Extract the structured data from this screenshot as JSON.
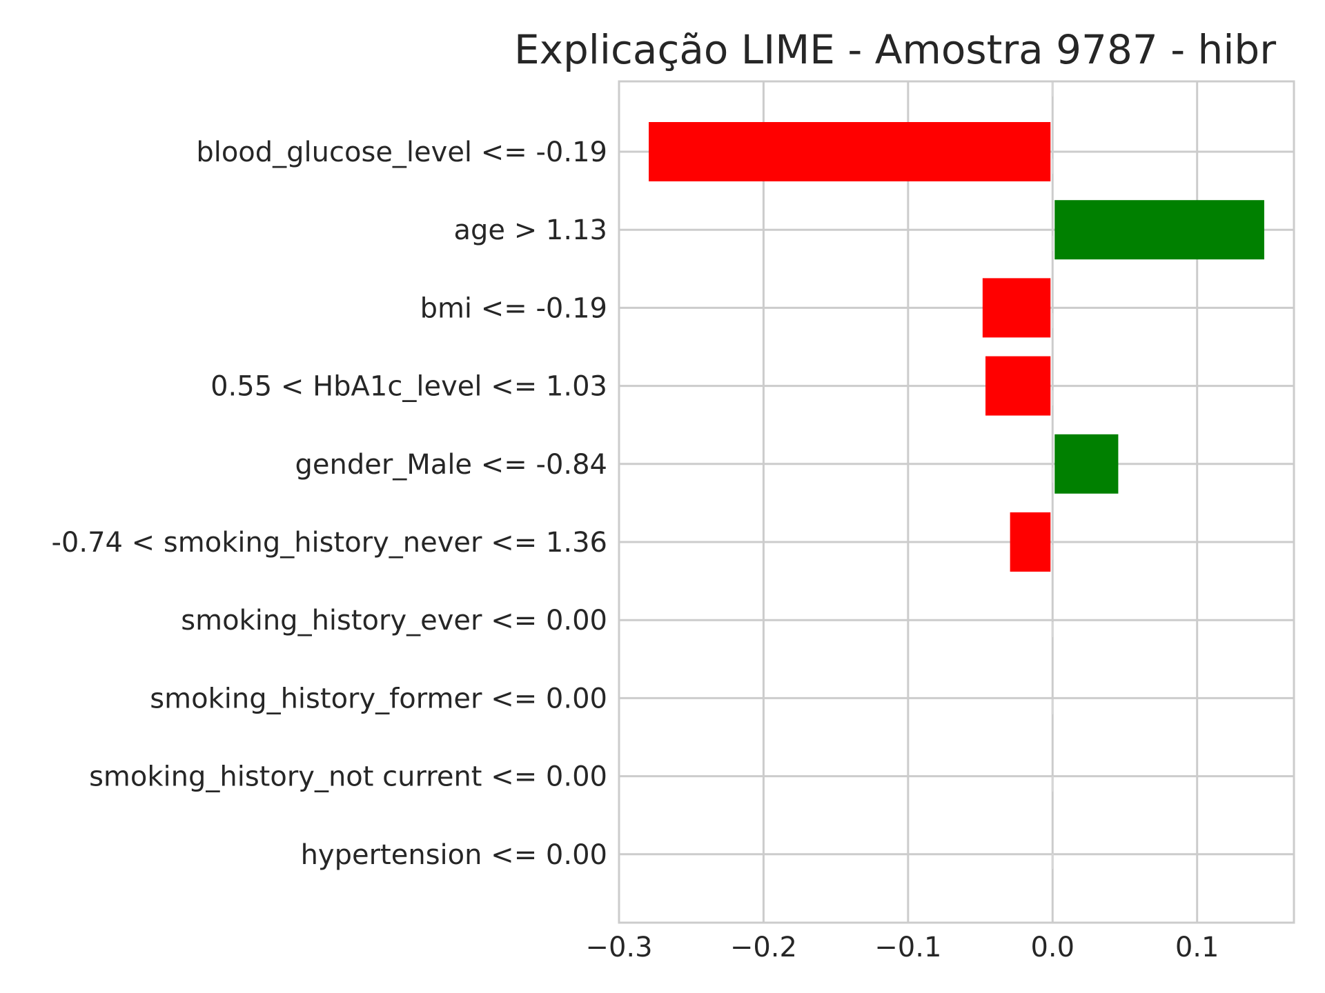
{
  "chart_data": {
    "type": "bar",
    "orientation": "horizontal",
    "title": "Explicação LIME - Amostra 9787 - hibr",
    "xlabel": "",
    "ylabel": "",
    "xlim": [
      -0.3,
      0.167
    ],
    "xticks": [
      -0.3,
      -0.2,
      -0.1,
      0.0,
      0.1
    ],
    "xtick_labels": [
      "−0.3",
      "−0.2",
      "−0.1",
      "0.0",
      "0.1"
    ],
    "grid": true,
    "categories": [
      "blood_glucose_level <= -0.19",
      "age > 1.13",
      "bmi <= -0.19",
      "0.55 < HbA1c_level <= 1.03",
      "gender_Male <= -0.84",
      "-0.74 < smoking_history_never <= 1.36",
      "smoking_history_ever <= 0.00",
      "smoking_history_former <= 0.00",
      "smoking_history_not current <= 0.00",
      "hypertension <= 0.00"
    ],
    "values": [
      -0.278,
      0.145,
      -0.047,
      -0.045,
      0.044,
      -0.028,
      0.0,
      0.0,
      0.0,
      0.0
    ],
    "colors": {
      "positive": "#008000",
      "negative": "#ff0000",
      "grid": "#cccccc",
      "text": "#262626"
    }
  }
}
